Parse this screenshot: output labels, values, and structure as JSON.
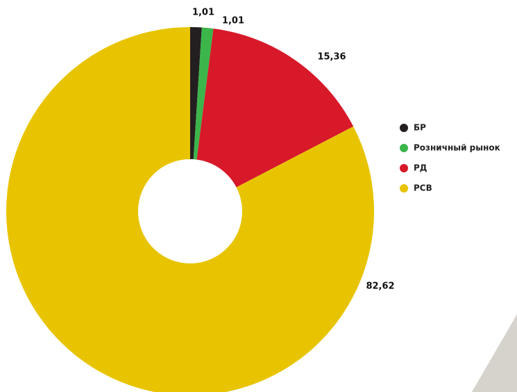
{
  "chart_data": {
    "type": "donut",
    "categories": [
      "БР",
      "Розничный рынок",
      "РД",
      "РСВ"
    ],
    "values": [
      1.01,
      1.01,
      15.36,
      82.62
    ],
    "value_labels": [
      "1,01",
      "1,01",
      "15,36",
      "82,62"
    ],
    "colors": [
      "#231f20",
      "#3cb54a",
      "#d7192a",
      "#e8c400"
    ],
    "legend": "right"
  }
}
